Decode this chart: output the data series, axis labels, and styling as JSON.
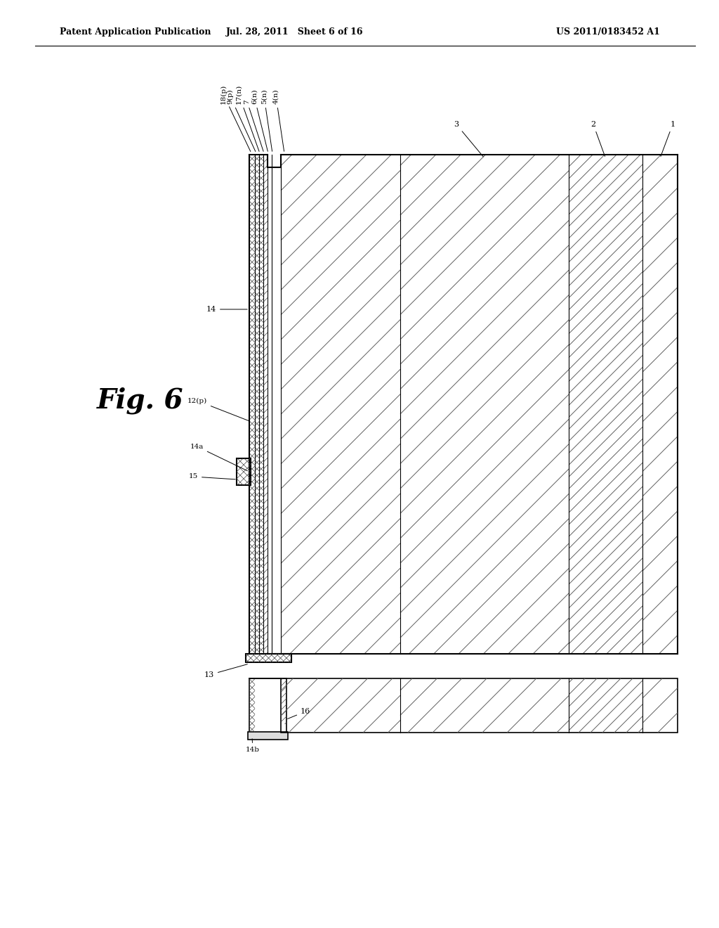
{
  "header_left": "Patent Application Publication",
  "header_mid": "Jul. 28, 2011   Sheet 6 of 16",
  "header_right": "US 2011/0183452 A1",
  "fig_label": "Fig. 6",
  "background_color": "#ffffff",
  "line_color": "#000000"
}
